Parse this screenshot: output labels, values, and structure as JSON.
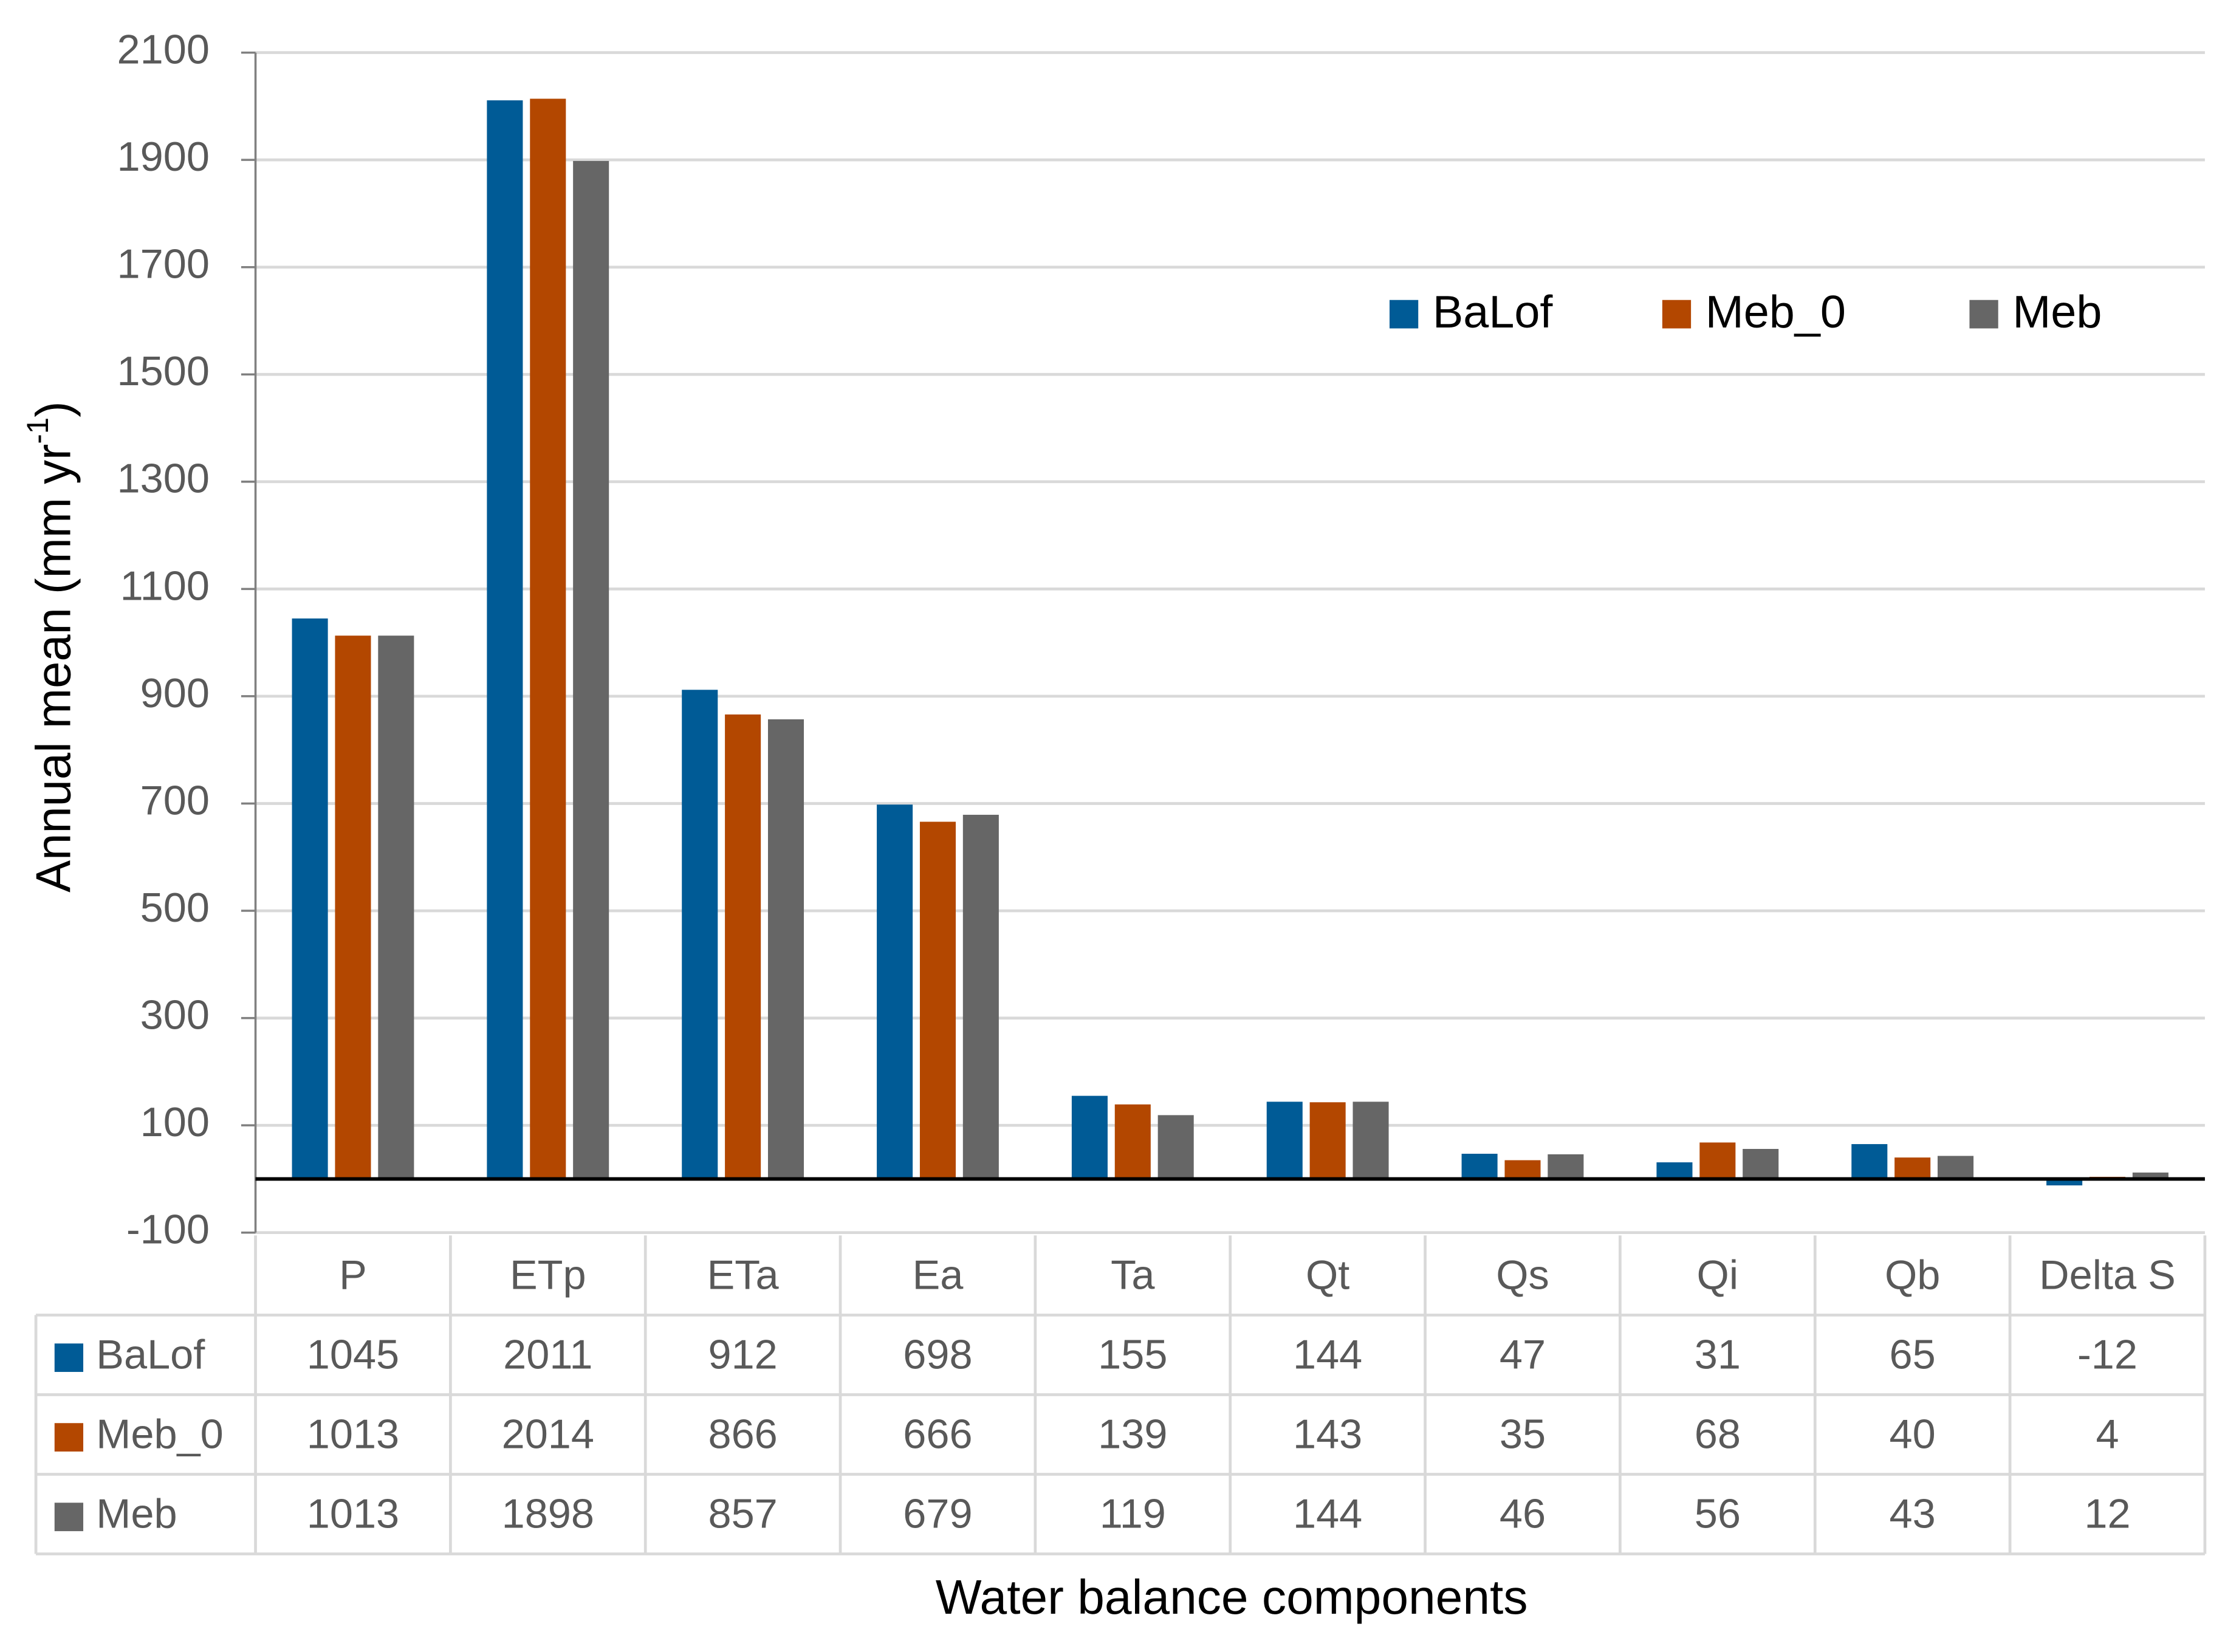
{
  "chart_data": {
    "type": "bar",
    "y_label": {
      "text": "Annual mean (mm yr",
      "superscript": "-1",
      "end": ")"
    },
    "x_label": "Water balance components",
    "categories": [
      "P",
      "ETp",
      "ETa",
      "Ea",
      "Ta",
      "Qt",
      "Qs",
      "Qi",
      "Qb",
      "Delta S"
    ],
    "series": [
      {
        "name": "BaLof",
        "color": "#005b96",
        "values": [
          1045,
          2011,
          912,
          698,
          155,
          144,
          47,
          31,
          65,
          -12
        ]
      },
      {
        "name": "Meb_0",
        "color": "#b34700",
        "values": [
          1013,
          2014,
          866,
          666,
          139,
          143,
          35,
          68,
          40,
          4
        ]
      },
      {
        "name": "Meb",
        "color": "#666666",
        "values": [
          1013,
          1898,
          857,
          679,
          119,
          144,
          46,
          56,
          43,
          12
        ]
      }
    ],
    "ylim": [
      -100,
      2100
    ],
    "yticks": [
      -100,
      100,
      300,
      500,
      700,
      900,
      1100,
      1300,
      1500,
      1700,
      1900,
      2100
    ],
    "grid": true
  }
}
